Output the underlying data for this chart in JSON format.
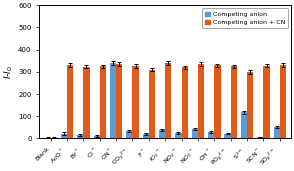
{
  "categories": [
    "Blank",
    "AcO$^-$",
    "Br$^-$",
    "Cl$^-$",
    "CN$^-$",
    "CO$_3$$^{2-}$",
    "F$^-$",
    "IO$_3$$^-$",
    "NO$_2$$^-$",
    "NO$_3$$^-$",
    "OH$^-$",
    "PO$_4$$^{2-}$",
    "S$^{2-}$",
    "SCN$^-$",
    "SO$_4$$^{2-}$"
  ],
  "blue_values": [
    2,
    22,
    15,
    12,
    340,
    35,
    20,
    38,
    25,
    42,
    30,
    22,
    118,
    5,
    52
  ],
  "orange_values": [
    2,
    330,
    323,
    325,
    335,
    327,
    310,
    340,
    320,
    335,
    330,
    325,
    300,
    328,
    330
  ],
  "blue_errors": [
    2,
    5,
    4,
    4,
    8,
    5,
    4,
    5,
    4,
    5,
    4,
    4,
    6,
    3,
    5
  ],
  "orange_errors": [
    2,
    8,
    7,
    7,
    10,
    8,
    8,
    9,
    8,
    8,
    7,
    8,
    8,
    7,
    8
  ],
  "blue_color": "#5B9BD5",
  "orange_color": "#E05A1A",
  "ylabel": "I-I$_0$",
  "ylim": [
    0,
    600
  ],
  "yticks": [
    0,
    100,
    200,
    300,
    400,
    500,
    600
  ],
  "legend_blue": "Competing anion",
  "legend_orange": "Competing anion + CN",
  "bar_width": 0.38,
  "background_color": "#ffffff"
}
